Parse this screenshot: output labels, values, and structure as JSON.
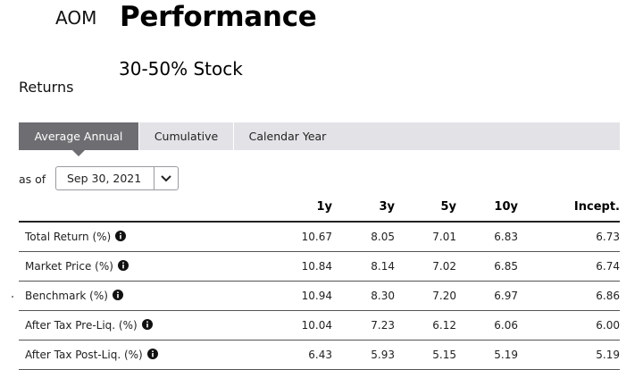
{
  "header": {
    "ticker": "AOM",
    "title": "Performance",
    "subtitle": "30-50% Stock",
    "section": "Returns"
  },
  "tabs": [
    {
      "label": "Average Annual",
      "active": true
    },
    {
      "label": "Cumulative",
      "active": false
    },
    {
      "label": "Calendar Year",
      "active": false
    }
  ],
  "asof": {
    "label": "as of",
    "value": "Sep 30, 2021"
  },
  "table": {
    "columns": [
      "1y",
      "3y",
      "5y",
      "10y",
      "Incept."
    ],
    "rows": [
      {
        "label": "Total Return (%)",
        "values": [
          "10.67",
          "8.05",
          "7.01",
          "6.83",
          "6.73"
        ]
      },
      {
        "label": "Market Price (%)",
        "values": [
          "10.84",
          "8.14",
          "7.02",
          "6.85",
          "6.74"
        ]
      },
      {
        "label": "Benchmark (%)",
        "values": [
          "10.94",
          "8.30",
          "7.20",
          "6.97",
          "6.86"
        ]
      },
      {
        "label": "After Tax Pre-Liq. (%)",
        "values": [
          "10.04",
          "7.23",
          "6.12",
          "6.06",
          "6.00"
        ]
      },
      {
        "label": "After Tax Post-Liq. (%)",
        "values": [
          "6.43",
          "5.93",
          "5.15",
          "5.19",
          "5.19"
        ]
      }
    ]
  },
  "icons": {
    "info": "info-icon",
    "dropdown": "chevron-down-icon"
  }
}
